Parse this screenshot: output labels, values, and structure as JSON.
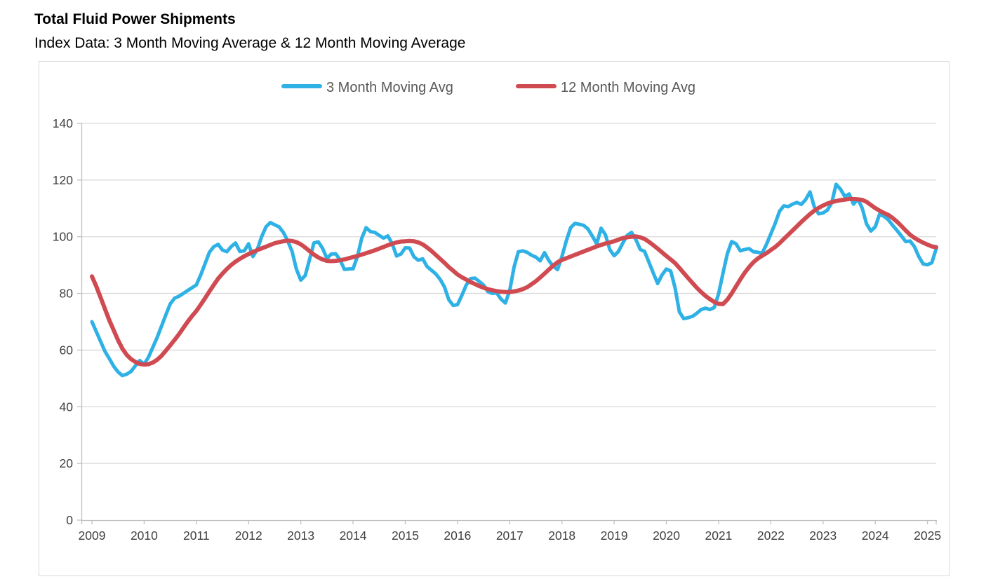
{
  "header": {
    "title": "Total Fluid Power Shipments",
    "subtitle": "Index Data: 3 Month Moving Average & 12 Month Moving Average"
  },
  "chart_data": {
    "type": "line",
    "title": "Total Fluid Power Shipments",
    "subtitle": "Index Data: 3 Month Moving Average & 12 Month Moving Average",
    "x_start": "2009-01",
    "x_end": "2025-03",
    "x_frequency": "monthly",
    "x_tick_labels": [
      "2009",
      "2010",
      "2011",
      "2012",
      "2013",
      "2014",
      "2015",
      "2016",
      "2017",
      "2018",
      "2019",
      "2020",
      "2021",
      "2022",
      "2023",
      "2024",
      "2025"
    ],
    "ylim": [
      0,
      140
    ],
    "y_tick_step": 20,
    "y_tick_labels": [
      "0",
      "20",
      "40",
      "60",
      "80",
      "100",
      "120",
      "140"
    ],
    "grid": "horizontal",
    "legend_position": "top-center",
    "colors": {
      "series_3mma": "#2eb1e5",
      "series_12mma": "#cf4b51",
      "gridline": "#d9d9d9",
      "axis_line": "#bfbfbf",
      "axis_text": "#404040",
      "legend_text": "#595959"
    },
    "series": [
      {
        "name": "3 Month Moving Avg",
        "color": "#2eb1e5",
        "stroke_width": 5,
        "values": [
          70,
          66.5,
          63,
          59.5,
          57,
          54.3,
          52.3,
          51,
          51.5,
          52.5,
          54.5,
          56.3,
          55,
          57.5,
          61,
          64.5,
          68.5,
          72.5,
          76.3,
          78.3,
          79,
          80,
          81,
          82,
          83,
          86.5,
          90.5,
          94.5,
          96.5,
          97.3,
          95.3,
          94.7,
          96.5,
          97.8,
          94.8,
          95,
          97.5,
          93,
          95.5,
          100,
          103.5,
          105,
          104.2,
          103.5,
          101.5,
          98.5,
          94.8,
          88.5,
          84.7,
          86.3,
          92,
          97.8,
          98.2,
          95.9,
          92.3,
          93.9,
          94,
          91.9,
          88.5,
          88.6,
          88.7,
          93,
          99.5,
          103.2,
          101.8,
          101.5,
          100.5,
          99.5,
          100.3,
          97.5,
          93.2,
          93.9,
          96.1,
          96,
          92.9,
          91.7,
          92.2,
          89.5,
          88.2,
          86.9,
          85,
          82.3,
          77.8,
          75.8,
          76,
          79.3,
          82.9,
          85.2,
          85.4,
          84.2,
          82.9,
          80.6,
          80,
          80.2,
          78,
          76.6,
          81,
          89.3,
          94.7,
          95,
          94.5,
          93.5,
          92.8,
          91.5,
          94.4,
          91.6,
          89.6,
          88.4,
          93,
          98.5,
          103.2,
          104.7,
          104.4,
          104,
          102.7,
          100.2,
          97.5,
          103,
          100.7,
          95.5,
          93.3,
          94.8,
          97.8,
          100.5,
          101.5,
          99,
          95.5,
          94.8,
          91,
          87.2,
          83.5,
          86.5,
          88.6,
          87.9,
          82,
          73.5,
          71.1,
          71.4,
          71.9,
          73,
          74.3,
          74.8,
          74.3,
          75,
          79.8,
          87,
          94,
          98.3,
          97.5,
          95,
          95.5,
          95.8,
          94.7,
          94.5,
          94.2,
          97.3,
          101,
          104.7,
          109,
          110.9,
          110.6,
          111.5,
          112.1,
          111.4,
          113.1,
          115.8,
          110.5,
          108.1,
          108.4,
          109.4,
          112,
          118.5,
          116.8,
          114.2,
          115.1,
          111.5,
          113.3,
          110.1,
          104.5,
          102,
          103.5,
          108,
          107.2,
          106,
          104,
          102.2,
          100.3,
          98.3,
          98.5,
          96.5,
          93,
          90.4,
          90.1,
          90.8,
          95.8
        ]
      },
      {
        "name": "12 Month Moving Avg",
        "color": "#cf4b51",
        "stroke_width": 6,
        "values": [
          86,
          82.5,
          78.5,
          74.5,
          70.5,
          67,
          63.5,
          60.5,
          58.3,
          56.8,
          55.8,
          55.1,
          54.9,
          55,
          55.6,
          56.6,
          58,
          59.8,
          61.7,
          63.6,
          65.6,
          67.8,
          70,
          72,
          73.8,
          76,
          78.3,
          80.7,
          83,
          85.2,
          87,
          88.6,
          90,
          91.2,
          92.2,
          93.1,
          93.9,
          94.6,
          95.3,
          95.9,
          96.5,
          97.1,
          97.7,
          98.1,
          98.4,
          98.6,
          98.5,
          98.1,
          97.3,
          96.2,
          94.9,
          93.7,
          92.7,
          92,
          91.5,
          91.4,
          91.5,
          91.7,
          92,
          92.4,
          92.8,
          93.2,
          93.7,
          94.2,
          94.7,
          95.2,
          95.8,
          96.4,
          97,
          97.5,
          98,
          98.3,
          98.4,
          98.5,
          98.4,
          98,
          97.3,
          96.2,
          95,
          93.6,
          92.2,
          90.8,
          89.3,
          88,
          86.7,
          85.7,
          84.9,
          84,
          83.3,
          82.6,
          82,
          81.5,
          81.1,
          80.8,
          80.6,
          80.5,
          80.5,
          80.7,
          81,
          81.5,
          82.2,
          83.2,
          84.3,
          85.6,
          87,
          88.4,
          89.8,
          91,
          91.8,
          92.4,
          93,
          93.6,
          94.2,
          94.8,
          95.4,
          96,
          96.6,
          97.1,
          97.6,
          98,
          98.4,
          99,
          99.5,
          99.8,
          100,
          100.1,
          99.8,
          99.2,
          98.2,
          97,
          95.8,
          94.5,
          93.2,
          92,
          90.7,
          89,
          87.2,
          85.4,
          83.7,
          82,
          80.5,
          79.1,
          78,
          77,
          76.3,
          76.2,
          77.8,
          80,
          82.5,
          85,
          87.3,
          89.3,
          91,
          92.3,
          93.3,
          94.2,
          95.3,
          96.4,
          97.7,
          99.2,
          100.7,
          102.2,
          103.7,
          105.2,
          106.6,
          108,
          109.2,
          110.2,
          111,
          111.7,
          112.2,
          112.6,
          112.9,
          113.1,
          113.3,
          113.3,
          113.2,
          113,
          112.3,
          111.2,
          110.1,
          109.2,
          108.4,
          107.7,
          106.6,
          105.3,
          103.8,
          102.2,
          100.7,
          99.6,
          98.7,
          97.9,
          97.2,
          96.6,
          96.3
        ]
      }
    ]
  }
}
